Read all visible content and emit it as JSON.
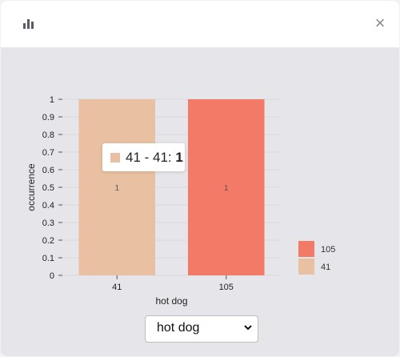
{
  "header": {
    "icon": "bar-chart-icon",
    "close_label": "×"
  },
  "chart_data": {
    "type": "bar",
    "xlabel": "hot dog",
    "ylabel": "occurrence",
    "ylim": [
      0,
      1
    ],
    "yticks": [
      "0",
      "0.1",
      "0.2",
      "0.3",
      "0.4",
      "0.5",
      "0.6",
      "0.7",
      "0.8",
      "0.9",
      "1"
    ],
    "categories": [
      "41",
      "105"
    ],
    "values": [
      1,
      1
    ],
    "data_labels": [
      "1",
      "1"
    ],
    "colors": [
      "#e9c1a2",
      "#f27a66"
    ],
    "legend": [
      {
        "label": "105",
        "color": "#f27a66"
      },
      {
        "label": "41",
        "color": "#e9c1a2"
      }
    ],
    "legend_position": "right"
  },
  "tooltip": {
    "range": "41 - 41:",
    "value": "1",
    "color": "#e9c1a2"
  },
  "select": {
    "value": "hot dog"
  }
}
